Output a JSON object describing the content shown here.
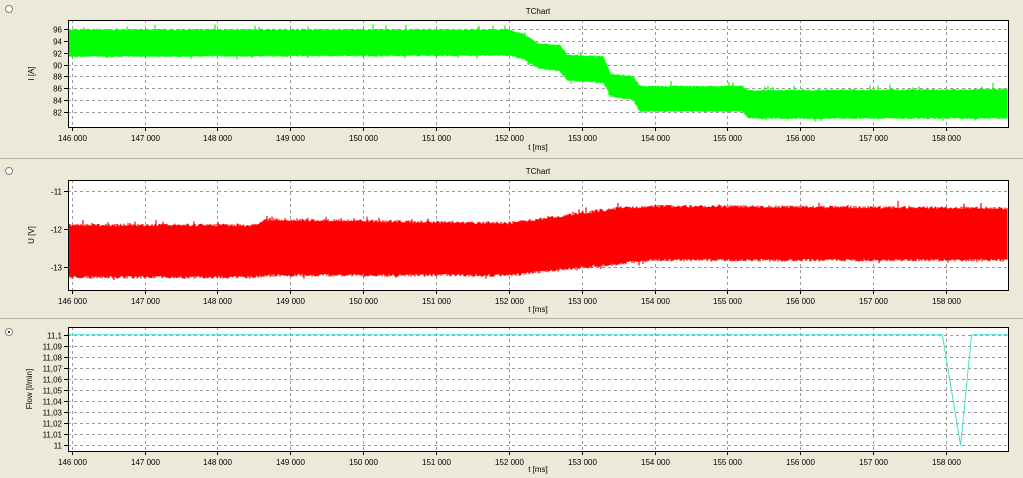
{
  "panels": [
    {
      "id": "current",
      "title": "TChart",
      "selected": false,
      "chart_data": {
        "type": "line",
        "title": "TChart",
        "xlabel": "t [ms]",
        "ylabel": "I [A]",
        "xlim": [
          145950,
          158850
        ],
        "ylim": [
          79.5,
          97.5
        ],
        "x_ticks": [
          146000,
          147000,
          148000,
          149000,
          150000,
          151000,
          152000,
          153000,
          154000,
          155000,
          156000,
          157000,
          158000
        ],
        "x_tick_labels": [
          "146 000",
          "147 000",
          "148 000",
          "149 000",
          "150 000",
          "151 000",
          "152 000",
          "153 000",
          "154 000",
          "155 000",
          "156 000",
          "157 000",
          "158 000"
        ],
        "y_ticks": [
          82,
          84,
          86,
          88,
          90,
          92,
          94,
          96
        ],
        "y_tick_labels": [
          "82",
          "84",
          "86",
          "88",
          "90",
          "92",
          "94",
          "96"
        ],
        "grid": true,
        "series": [
          {
            "color": "#00ff00",
            "style": "noisy-band",
            "x": [
              145950,
              152000,
              152200,
              152400,
              152700,
              152800,
              153300,
              153400,
              153700,
              153800,
              155200,
              155300,
              158850
            ],
            "high": [
              96,
              96,
              95.3,
              93.7,
              93.4,
              91.8,
              91.5,
              88.5,
              88.2,
              86.5,
              86.5,
              85.8,
              86
            ],
            "low": [
              91.2,
              91.4,
              90.8,
              89.3,
              88.8,
              87.2,
              86.8,
              84.5,
              84,
              82,
              82,
              80.8,
              80.8
            ]
          }
        ]
      }
    },
    {
      "id": "voltage",
      "title": "TChart",
      "selected": false,
      "chart_data": {
        "type": "line",
        "title": "TChart",
        "xlabel": "t [ms]",
        "ylabel": "U [V]",
        "xlim": [
          145950,
          158850
        ],
        "ylim": [
          -13.6,
          -10.7
        ],
        "x_ticks": [
          146000,
          147000,
          148000,
          149000,
          150000,
          151000,
          152000,
          153000,
          154000,
          155000,
          156000,
          157000,
          158000
        ],
        "x_tick_labels": [
          "146 000",
          "147 000",
          "148 000",
          "149 000",
          "150 000",
          "151 000",
          "152 000",
          "153 000",
          "154 000",
          "155 000",
          "156 000",
          "157 000",
          "158 000"
        ],
        "y_ticks": [
          -13,
          -12,
          -11
        ],
        "y_tick_labels": [
          "-13",
          "-12",
          "-11"
        ],
        "grid": true,
        "series": [
          {
            "color": "#ff0000",
            "style": "noisy-band",
            "x": [
              145950,
              148500,
              148700,
              152000,
              153500,
              154000,
              158850
            ],
            "high": [
              -11.85,
              -11.85,
              -11.7,
              -11.8,
              -11.4,
              -11.35,
              -11.4
            ],
            "low": [
              -13.3,
              -13.3,
              -13.25,
              -13.25,
              -12.95,
              -12.85,
              -12.85
            ]
          }
        ]
      }
    },
    {
      "id": "flow",
      "title": "",
      "selected": true,
      "chart_data": {
        "type": "line",
        "title": "",
        "xlabel": "t [ms]",
        "ylabel": "Flow [l/min]",
        "xlim": [
          145950,
          158850
        ],
        "ylim": [
          10.995,
          11.107
        ],
        "x_ticks": [
          146000,
          147000,
          148000,
          149000,
          150000,
          151000,
          152000,
          153000,
          154000,
          155000,
          156000,
          157000,
          158000
        ],
        "x_tick_labels": [
          "146 000",
          "147 000",
          "148 000",
          "149 000",
          "150 000",
          "151 000",
          "152 000",
          "153 000",
          "154 000",
          "155 000",
          "156 000",
          "157 000",
          "158 000"
        ],
        "y_ticks": [
          11,
          11.01,
          11.02,
          11.03,
          11.04,
          11.05,
          11.06,
          11.07,
          11.08,
          11.09,
          11.1
        ],
        "y_tick_labels": [
          "11",
          "11,01",
          "11,02",
          "11,03",
          "11,04",
          "11,05",
          "11,06",
          "11,07",
          "11,08",
          "11,09",
          "11,1"
        ],
        "grid": true,
        "series": [
          {
            "color": "#40e0d0",
            "style": "line",
            "x": [
              145950,
              157950,
              158200,
              158350,
              158850
            ],
            "y": [
              11.1,
              11.1,
              11.0,
              11.1,
              11.1
            ]
          }
        ]
      }
    }
  ]
}
